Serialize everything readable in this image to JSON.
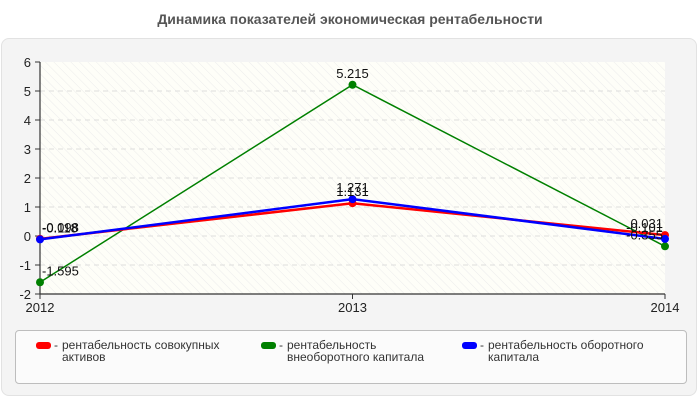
{
  "chart_data": {
    "type": "line",
    "title": "Динамика показателей экономическая рентабельности",
    "xlabel": "",
    "ylabel": "",
    "categories": [
      "2012",
      "2013",
      "2014"
    ],
    "ylim": [
      -2,
      6
    ],
    "yticks": [
      "-2",
      "-1",
      "0",
      "1",
      "2",
      "3",
      "4",
      "5",
      "6"
    ],
    "grid": true,
    "legend_position": "bottom",
    "series": [
      {
        "name": "рентабельность совокупных активов",
        "color": "#ff0000",
        "values": [
          -0.098,
          1.131,
          0.031
        ],
        "labels": [
          "-0.098",
          "1.131",
          "0.031"
        ]
      },
      {
        "name": "рентабельность внеоборотного капитала",
        "color": "#008000",
        "values": [
          -1.595,
          5.215,
          -0.355
        ],
        "labels": [
          "-1.595",
          "5.215",
          "-0.355"
        ]
      },
      {
        "name": "рентабельность оборотного капитала",
        "color": "#0000ff",
        "values": [
          -0.118,
          1.271,
          -0.101
        ],
        "labels": [
          "-0.118",
          "1.271",
          "-0.101"
        ]
      }
    ]
  },
  "legend": {
    "items": [
      {
        "label": "рентабельность совокупных активов",
        "color": "#ff0000"
      },
      {
        "label": "рентабельность внеоборотного капитала",
        "color": "#008000"
      },
      {
        "label": "рентабельность оборотного капитала",
        "color": "#0000ff"
      }
    ]
  }
}
